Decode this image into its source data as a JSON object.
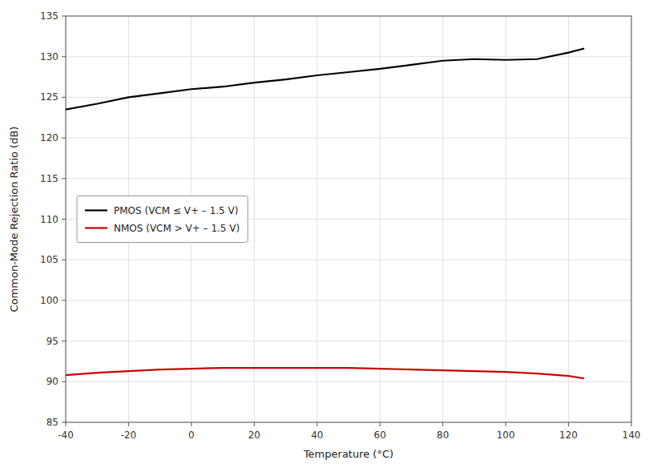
{
  "chart_data": {
    "type": "line",
    "xlabel": "Temperature (°C)",
    "ylabel": "Common-Mode Rejection Ratio (dB)",
    "xlim": [
      -40,
      140
    ],
    "ylim": [
      85,
      135
    ],
    "xticks": [
      -40,
      -20,
      0,
      20,
      40,
      60,
      80,
      100,
      120,
      140
    ],
    "yticks": [
      85,
      90,
      95,
      100,
      105,
      110,
      115,
      120,
      125,
      130,
      135
    ],
    "x": [
      -40,
      -30,
      -20,
      -10,
      0,
      10,
      20,
      30,
      40,
      50,
      60,
      70,
      80,
      90,
      100,
      110,
      120,
      125
    ],
    "series": [
      {
        "name": "PMOS (VCM ≤ V+ – 1.5 V)",
        "color": "#000000",
        "values": [
          123.5,
          124.2,
          125.0,
          125.5,
          126.0,
          126.3,
          126.8,
          127.2,
          127.7,
          128.1,
          128.5,
          129.0,
          129.5,
          129.7,
          129.6,
          129.7,
          130.5,
          131.0
        ]
      },
      {
        "name": "NMOS (VCM > V+ – 1.5 V)",
        "color": "#cc0000",
        "values": [
          90.8,
          91.1,
          91.3,
          91.5,
          91.6,
          91.7,
          91.7,
          91.7,
          91.7,
          91.7,
          91.6,
          91.5,
          91.4,
          91.3,
          91.2,
          91.0,
          90.7,
          90.4
        ]
      }
    ],
    "grid": true,
    "legend": "center left"
  }
}
